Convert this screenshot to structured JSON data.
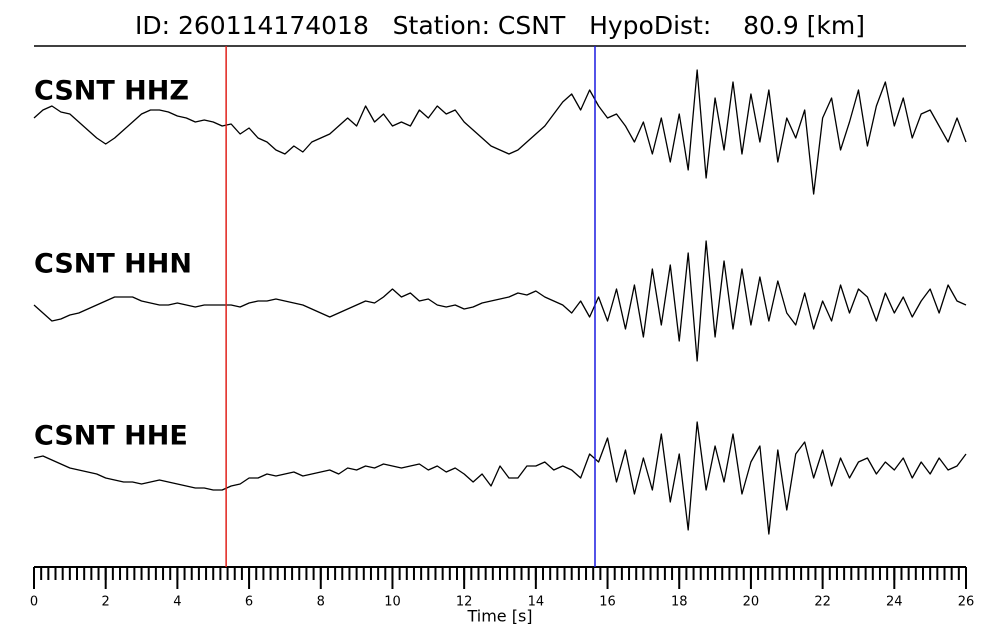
{
  "chart_data": {
    "type": "seismogram",
    "title": "ID: 260114174018   Station: CSNT   HypoDist:    80.9 [km]",
    "xlabel": "Time [s]",
    "xlim": [
      0,
      26
    ],
    "xticks": [
      0,
      2,
      4,
      6,
      8,
      10,
      12,
      14,
      16,
      18,
      20,
      22,
      24,
      26
    ],
    "xminor": 0.2,
    "label_color": "#4a9a0a",
    "markers": [
      {
        "x": 5.36,
        "color": "#e0201b"
      },
      {
        "x": 15.65,
        "color": "#1a1ae0"
      }
    ],
    "x": [
      0,
      0.25,
      0.5,
      0.75,
      1,
      1.25,
      1.5,
      1.75,
      2,
      2.25,
      2.5,
      2.75,
      3,
      3.25,
      3.5,
      3.75,
      4,
      4.25,
      4.5,
      4.75,
      5,
      5.25,
      5.5,
      5.75,
      6,
      6.25,
      6.5,
      6.75,
      7,
      7.25,
      7.5,
      7.75,
      8,
      8.25,
      8.5,
      8.75,
      9,
      9.25,
      9.5,
      9.75,
      10,
      10.25,
      10.5,
      10.75,
      11,
      11.25,
      11.5,
      11.75,
      12,
      12.25,
      12.5,
      12.75,
      13,
      13.25,
      13.5,
      13.75,
      14,
      14.25,
      14.5,
      14.75,
      15,
      15.25,
      15.5,
      15.75,
      16,
      16.25,
      16.5,
      16.75,
      17,
      17.25,
      17.5,
      17.75,
      18,
      18.25,
      18.5,
      18.75,
      19,
      19.25,
      19.5,
      19.75,
      20,
      20.25,
      20.5,
      20.75,
      21,
      21.25,
      21.5,
      21.75,
      22,
      22.25,
      22.5,
      22.75,
      23,
      23.25,
      23.5,
      23.75,
      24,
      24.25,
      24.5,
      24.75,
      25,
      25.25,
      25.5,
      25.75,
      26
    ],
    "series": [
      {
        "name": "CSNT HHZ",
        "color": "#000000",
        "values": [
          0.3,
          0.5,
          0.6,
          0.45,
          0.4,
          0.2,
          0,
          -0.2,
          -0.35,
          -0.2,
          0,
          0.2,
          0.4,
          0.5,
          0.5,
          0.45,
          0.35,
          0.3,
          0.2,
          0.25,
          0.2,
          0.1,
          0.15,
          -0.1,
          0.05,
          -0.2,
          -0.3,
          -0.5,
          -0.6,
          -0.4,
          -0.55,
          -0.3,
          -0.2,
          -0.1,
          0.1,
          0.3,
          0.1,
          0.6,
          0.2,
          0.4,
          0.1,
          0.2,
          0.1,
          0.5,
          0.3,
          0.6,
          0.4,
          0.5,
          0.2,
          0,
          -0.2,
          -0.4,
          -0.5,
          -0.6,
          -0.5,
          -0.3,
          -0.1,
          0.1,
          0.4,
          0.7,
          0.9,
          0.5,
          1.0,
          0.6,
          0.3,
          0.4,
          0.1,
          -0.3,
          0.2,
          -0.6,
          0.3,
          -0.8,
          0.4,
          -1.0,
          1.5,
          -1.2,
          0.8,
          -0.5,
          1.2,
          -0.6,
          0.9,
          -0.3,
          1.0,
          -0.8,
          0.3,
          -0.2,
          0.5,
          -1.6,
          0.3,
          0.8,
          -0.5,
          0.2,
          1.0,
          -0.4,
          0.6,
          1.2,
          0.1,
          0.8,
          -0.2,
          0.4,
          0.5,
          0.1,
          -0.3,
          0.3,
          -0.3
        ]
      },
      {
        "name": "CSNT HHN",
        "color": "#000000",
        "values": [
          0,
          -0.2,
          -0.4,
          -0.35,
          -0.25,
          -0.2,
          -0.1,
          0,
          0.1,
          0.2,
          0.2,
          0.2,
          0.1,
          0.05,
          0,
          0,
          0.05,
          0,
          -0.05,
          0,
          0,
          0,
          0,
          -0.05,
          0.05,
          0.1,
          0.1,
          0.15,
          0.1,
          0.05,
          0,
          -0.1,
          -0.2,
          -0.3,
          -0.2,
          -0.1,
          0,
          0.1,
          0.05,
          0.2,
          0.4,
          0.2,
          0.3,
          0.1,
          0.15,
          0,
          -0.05,
          0,
          -0.1,
          -0.05,
          0.05,
          0.1,
          0.15,
          0.2,
          0.3,
          0.25,
          0.35,
          0.2,
          0.1,
          0,
          -0.2,
          0.1,
          -0.3,
          0.2,
          -0.4,
          0.4,
          -0.6,
          0.5,
          -0.8,
          0.9,
          -0.5,
          1.0,
          -0.9,
          1.3,
          -1.4,
          1.6,
          -0.8,
          1.1,
          -0.6,
          0.9,
          -0.5,
          0.7,
          -0.4,
          0.6,
          -0.2,
          -0.5,
          0.3,
          -0.6,
          0.1,
          -0.4,
          0.5,
          -0.2,
          0.4,
          0.2,
          -0.4,
          0.3,
          -0.2,
          0.2,
          -0.3,
          0.1,
          0.4,
          -0.2,
          0.5,
          0.1,
          0
        ]
      },
      {
        "name": "CSNT HHE",
        "color": "#000000",
        "values": [
          0.3,
          0.35,
          0.25,
          0.15,
          0.05,
          0,
          -0.05,
          -0.1,
          -0.2,
          -0.25,
          -0.3,
          -0.3,
          -0.35,
          -0.3,
          -0.25,
          -0.3,
          -0.35,
          -0.4,
          -0.45,
          -0.45,
          -0.5,
          -0.5,
          -0.4,
          -0.35,
          -0.2,
          -0.2,
          -0.1,
          -0.15,
          -0.1,
          -0.05,
          -0.15,
          -0.1,
          -0.05,
          0,
          -0.1,
          0.05,
          0,
          0.1,
          0.05,
          0.15,
          0.1,
          0.05,
          0.1,
          0.15,
          0,
          0.1,
          -0.05,
          0.05,
          -0.1,
          -0.3,
          -0.1,
          -0.4,
          0.1,
          -0.2,
          -0.2,
          0.1,
          0.1,
          0.2,
          0,
          0.1,
          0,
          -0.2,
          0.4,
          0.2,
          0.8,
          -0.3,
          0.5,
          -0.6,
          0.3,
          -0.5,
          0.9,
          -0.8,
          0.4,
          -1.5,
          1.2,
          -0.5,
          0.6,
          -0.3,
          0.9,
          -0.6,
          0.2,
          0.6,
          -1.6,
          0.5,
          -1.0,
          0.4,
          0.7,
          -0.2,
          0.5,
          -0.4,
          0.3,
          -0.2,
          0.2,
          0.3,
          -0.1,
          0.2,
          0,
          0.3,
          -0.2,
          0.2,
          -0.1,
          0.3,
          0,
          0.1,
          0.4
        ]
      }
    ]
  }
}
